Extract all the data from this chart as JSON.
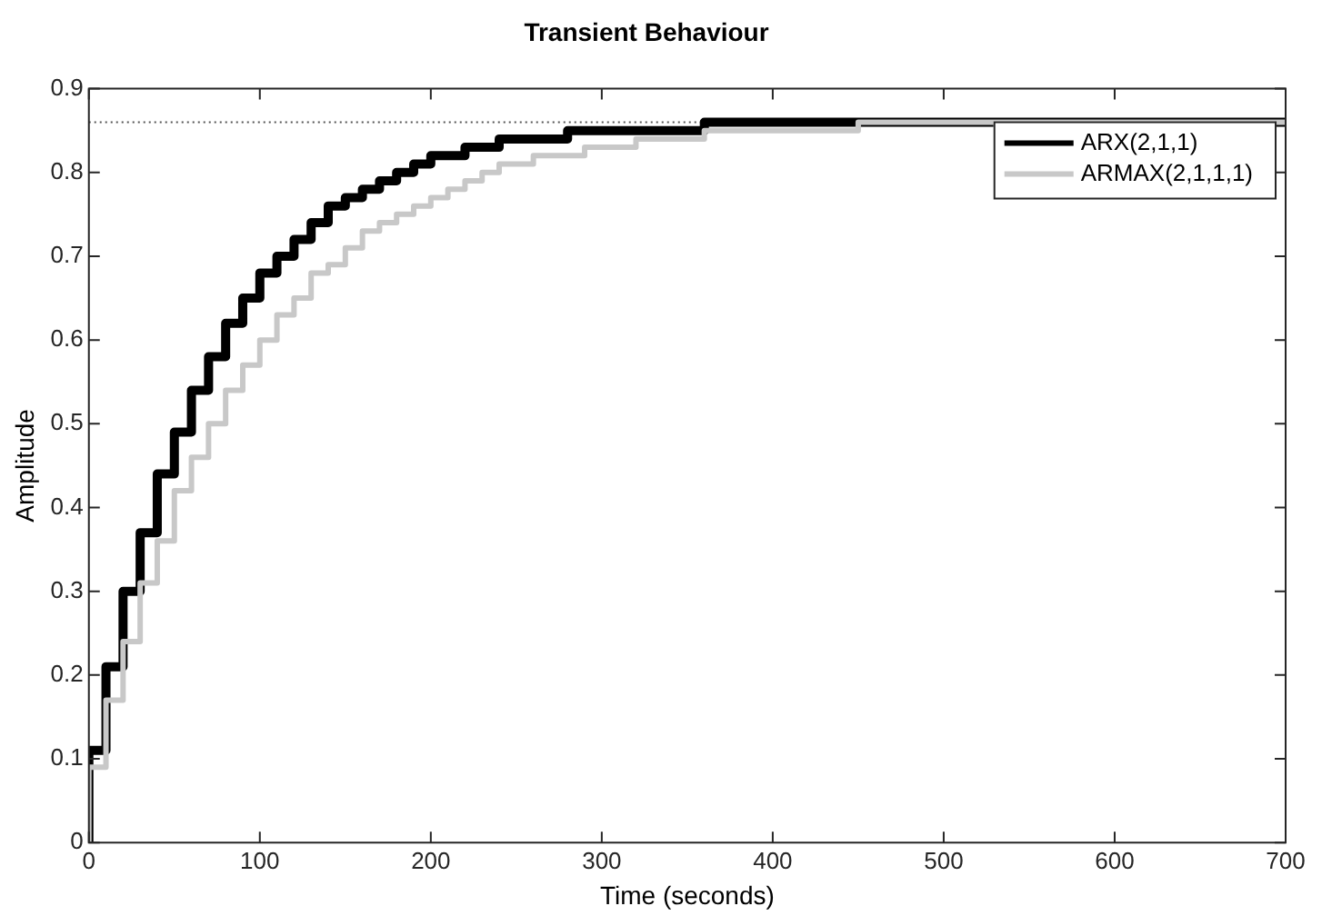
{
  "chart_data": {
    "type": "step",
    "title": "Transient Behaviour",
    "xlabel": "Time (seconds)",
    "ylabel": "Amplitude",
    "x": [
      0,
      10,
      20,
      30,
      40,
      50,
      60,
      70,
      80,
      90,
      100,
      110,
      120,
      130,
      140,
      150,
      160,
      170,
      180,
      190,
      200,
      210,
      220,
      230,
      240,
      250,
      260,
      270,
      280,
      290,
      300,
      310,
      320,
      330,
      340,
      350,
      360,
      370,
      380,
      390,
      400,
      450,
      500,
      700
    ],
    "series": [
      {
        "name": "ARX(2,1,1)",
        "color": "#000000",
        "values": [
          0,
          0.11,
          0.21,
          0.3,
          0.37,
          0.44,
          0.49,
          0.54,
          0.58,
          0.62,
          0.65,
          0.68,
          0.7,
          0.72,
          0.74,
          0.76,
          0.77,
          0.78,
          0.79,
          0.8,
          0.81,
          0.82,
          0.82,
          0.83,
          0.83,
          0.84,
          0.84,
          0.84,
          0.84,
          0.85,
          0.85,
          0.85,
          0.85,
          0.85,
          0.85,
          0.85,
          0.85,
          0.86,
          0.86,
          0.86,
          0.86,
          0.86,
          0.86,
          0.86
        ]
      },
      {
        "name": "ARMAX(2,1,1,1)",
        "color": "#c8c8c8",
        "values": [
          0,
          0.09,
          0.17,
          0.24,
          0.31,
          0.36,
          0.42,
          0.46,
          0.5,
          0.54,
          0.57,
          0.6,
          0.63,
          0.65,
          0.68,
          0.69,
          0.71,
          0.73,
          0.74,
          0.75,
          0.76,
          0.77,
          0.78,
          0.79,
          0.8,
          0.81,
          0.81,
          0.82,
          0.82,
          0.82,
          0.83,
          0.83,
          0.83,
          0.84,
          0.84,
          0.84,
          0.84,
          0.85,
          0.85,
          0.85,
          0.85,
          0.85,
          0.86,
          0.86
        ]
      }
    ],
    "ref_lines": [
      {
        "axis": "y",
        "value": 0.86,
        "color": "#555555",
        "line_style": "dotted"
      }
    ],
    "xlim": [
      0,
      700
    ],
    "xticks": [
      0,
      100,
      200,
      300,
      400,
      500,
      600,
      700
    ],
    "ylim": [
      0,
      0.9
    ],
    "yticks": [
      0,
      0.1,
      0.2,
      0.3,
      0.4,
      0.5,
      0.6,
      0.7,
      0.8,
      0.9
    ],
    "grid": false,
    "legend": "top right",
    "marker": "none",
    "line_style": "solid"
  }
}
